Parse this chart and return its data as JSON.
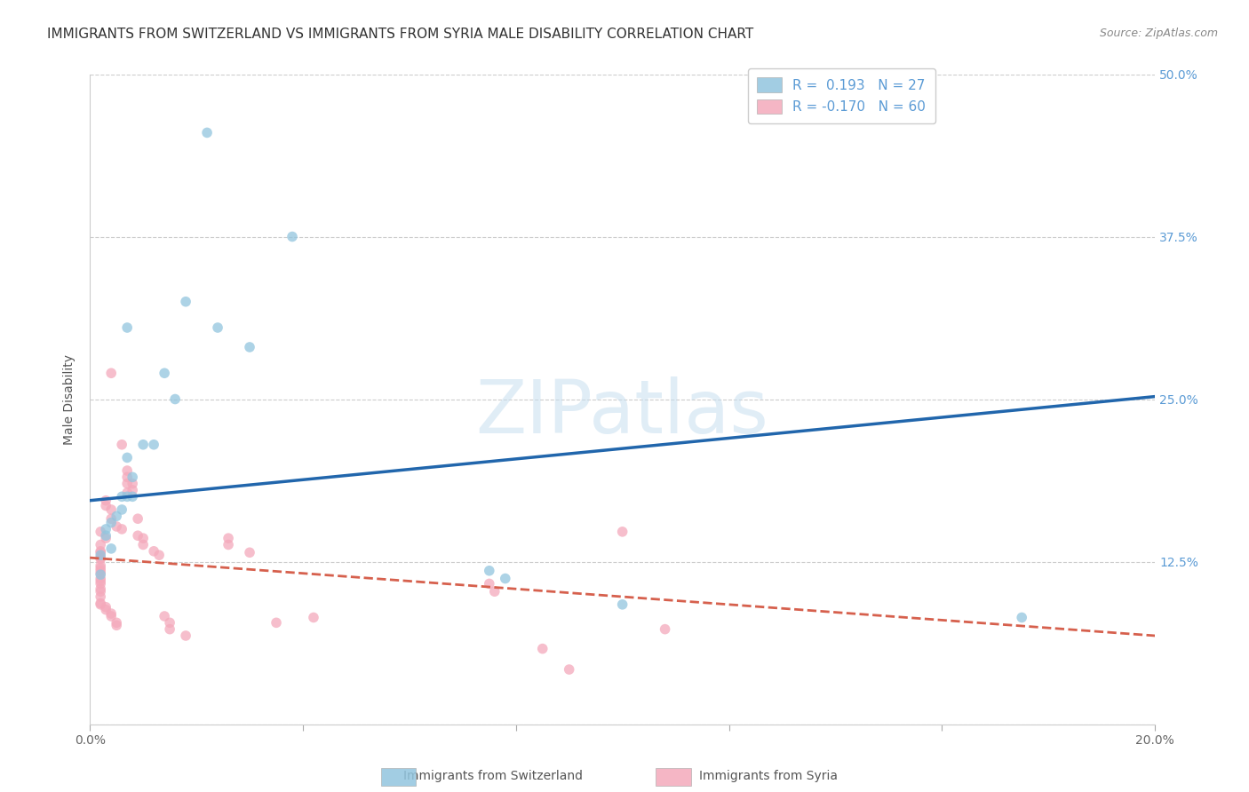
{
  "title": "IMMIGRANTS FROM SWITZERLAND VS IMMIGRANTS FROM SYRIA MALE DISABILITY CORRELATION CHART",
  "source": "Source: ZipAtlas.com",
  "ylabel": "Male Disability",
  "watermark": "ZIPatlas",
  "x_min": 0.0,
  "x_max": 0.2,
  "y_min": 0.0,
  "y_max": 0.5,
  "x_ticks": [
    0.0,
    0.04,
    0.08,
    0.12,
    0.16,
    0.2
  ],
  "x_tick_labels": [
    "0.0%",
    "",
    "",
    "",
    "",
    "20.0%"
  ],
  "y_ticks": [
    0.0,
    0.125,
    0.25,
    0.375,
    0.5
  ],
  "y_tick_labels": [
    "",
    "12.5%",
    "25.0%",
    "37.5%",
    "50.0%"
  ],
  "switzerland_color": "#92c5de",
  "syria_color": "#f4a9bb",
  "trendline_switzerland_color": "#2166ac",
  "trendline_syria_color": "#d6604d",
  "trendline_sw_x0": 0.0,
  "trendline_sw_y0": 0.172,
  "trendline_sw_x1": 0.2,
  "trendline_sw_y1": 0.252,
  "trendline_sy_x0": 0.0,
  "trendline_sy_y0": 0.128,
  "trendline_sy_x1": 0.2,
  "trendline_sy_y1": 0.068,
  "legend_r_sw": "0.193",
  "legend_n_sw": "27",
  "legend_r_sy": "-0.170",
  "legend_n_sy": "60",
  "switzerland_points": [
    [
      0.022,
      0.455
    ],
    [
      0.038,
      0.375
    ],
    [
      0.018,
      0.325
    ],
    [
      0.024,
      0.305
    ],
    [
      0.03,
      0.29
    ],
    [
      0.014,
      0.27
    ],
    [
      0.016,
      0.25
    ],
    [
      0.007,
      0.305
    ],
    [
      0.01,
      0.215
    ],
    [
      0.012,
      0.215
    ],
    [
      0.007,
      0.205
    ],
    [
      0.008,
      0.19
    ],
    [
      0.006,
      0.175
    ],
    [
      0.007,
      0.175
    ],
    [
      0.008,
      0.175
    ],
    [
      0.006,
      0.165
    ],
    [
      0.005,
      0.16
    ],
    [
      0.004,
      0.155
    ],
    [
      0.003,
      0.15
    ],
    [
      0.003,
      0.145
    ],
    [
      0.004,
      0.135
    ],
    [
      0.002,
      0.13
    ],
    [
      0.002,
      0.115
    ],
    [
      0.075,
      0.118
    ],
    [
      0.078,
      0.112
    ],
    [
      0.1,
      0.092
    ],
    [
      0.175,
      0.082
    ]
  ],
  "syria_points": [
    [
      0.004,
      0.27
    ],
    [
      0.006,
      0.215
    ],
    [
      0.007,
      0.195
    ],
    [
      0.007,
      0.19
    ],
    [
      0.008,
      0.185
    ],
    [
      0.007,
      0.185
    ],
    [
      0.008,
      0.18
    ],
    [
      0.007,
      0.178
    ],
    [
      0.003,
      0.172
    ],
    [
      0.003,
      0.168
    ],
    [
      0.004,
      0.165
    ],
    [
      0.004,
      0.158
    ],
    [
      0.005,
      0.152
    ],
    [
      0.006,
      0.15
    ],
    [
      0.002,
      0.148
    ],
    [
      0.003,
      0.143
    ],
    [
      0.002,
      0.138
    ],
    [
      0.002,
      0.133
    ],
    [
      0.002,
      0.132
    ],
    [
      0.002,
      0.128
    ],
    [
      0.002,
      0.127
    ],
    [
      0.002,
      0.122
    ],
    [
      0.002,
      0.12
    ],
    [
      0.002,
      0.118
    ],
    [
      0.002,
      0.116
    ],
    [
      0.002,
      0.112
    ],
    [
      0.002,
      0.11
    ],
    [
      0.002,
      0.108
    ],
    [
      0.002,
      0.104
    ],
    [
      0.002,
      0.102
    ],
    [
      0.002,
      0.098
    ],
    [
      0.002,
      0.093
    ],
    [
      0.002,
      0.092
    ],
    [
      0.003,
      0.09
    ],
    [
      0.003,
      0.088
    ],
    [
      0.004,
      0.085
    ],
    [
      0.004,
      0.083
    ],
    [
      0.005,
      0.078
    ],
    [
      0.005,
      0.076
    ],
    [
      0.009,
      0.158
    ],
    [
      0.009,
      0.145
    ],
    [
      0.01,
      0.143
    ],
    [
      0.01,
      0.138
    ],
    [
      0.012,
      0.133
    ],
    [
      0.013,
      0.13
    ],
    [
      0.014,
      0.083
    ],
    [
      0.015,
      0.078
    ],
    [
      0.015,
      0.073
    ],
    [
      0.018,
      0.068
    ],
    [
      0.026,
      0.143
    ],
    [
      0.026,
      0.138
    ],
    [
      0.03,
      0.132
    ],
    [
      0.035,
      0.078
    ],
    [
      0.042,
      0.082
    ],
    [
      0.075,
      0.108
    ],
    [
      0.076,
      0.102
    ],
    [
      0.085,
      0.058
    ],
    [
      0.09,
      0.042
    ],
    [
      0.1,
      0.148
    ],
    [
      0.108,
      0.073
    ]
  ],
  "background_color": "#ffffff",
  "grid_color": "#cccccc",
  "title_fontsize": 11,
  "label_fontsize": 10,
  "tick_fontsize": 10,
  "legend_fontsize": 11,
  "marker_size": 70
}
